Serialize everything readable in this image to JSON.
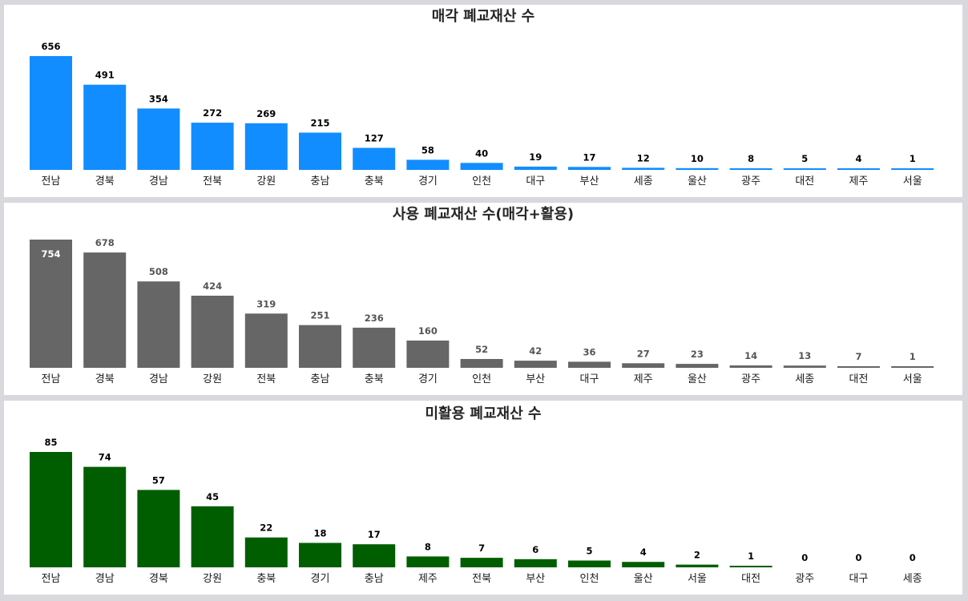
{
  "charts": [
    {
      "type": "bar",
      "title": "매각 폐교재산 수",
      "color": "#118dff",
      "label_color": "#000000",
      "categories": [
        "전남",
        "경북",
        "경남",
        "전북",
        "강원",
        "충남",
        "충북",
        "경기",
        "인천",
        "대구",
        "부산",
        "세종",
        "울산",
        "광주",
        "대전",
        "제주",
        "서울"
      ],
      "values": [
        656,
        491,
        354,
        272,
        269,
        215,
        127,
        58,
        40,
        19,
        17,
        12,
        10,
        8,
        5,
        4,
        1
      ],
      "labels": [
        "656",
        "491",
        "354",
        "272",
        "269",
        "215",
        "127",
        "58",
        "40",
        "19",
        "17",
        "12",
        "10",
        "8",
        "5",
        "4",
        "1"
      ]
    },
    {
      "type": "bar",
      "title": "사용 폐교재산 수(매각+활용)",
      "color": "#666666",
      "label_color": "#555555",
      "first_label_inside": true,
      "categories": [
        "전남",
        "경북",
        "경남",
        "강원",
        "전북",
        "충남",
        "충북",
        "경기",
        "인천",
        "부산",
        "대구",
        "제주",
        "울산",
        "광주",
        "세종",
        "대전",
        "서울"
      ],
      "values": [
        754,
        678,
        508,
        424,
        319,
        251,
        236,
        160,
        52,
        42,
        36,
        27,
        23,
        14,
        13,
        7,
        1
      ],
      "labels": [
        "754",
        "678",
        "508",
        "424",
        "319",
        "251",
        "236",
        "160",
        "52",
        "42",
        "36",
        "27",
        "23",
        "14",
        "13",
        "7",
        "1"
      ]
    },
    {
      "type": "bar",
      "title": "미활용 폐교재산 수",
      "color": "#005e00",
      "label_color": "#000000",
      "categories": [
        "전남",
        "경남",
        "경북",
        "강원",
        "충북",
        "경기",
        "충남",
        "제주",
        "전북",
        "부산",
        "인천",
        "울산",
        "서울",
        "대전",
        "광주",
        "대구",
        "세종"
      ],
      "values": [
        85,
        74,
        57,
        45,
        22,
        18,
        17,
        8,
        7,
        6,
        5,
        4,
        2,
        1,
        0,
        0,
        0
      ],
      "labels": [
        "85",
        "74",
        "57",
        "45",
        "22",
        "18",
        "17",
        "8",
        "7",
        "6",
        "5",
        "4",
        "2",
        "1",
        "0",
        "0",
        "0"
      ]
    }
  ]
}
